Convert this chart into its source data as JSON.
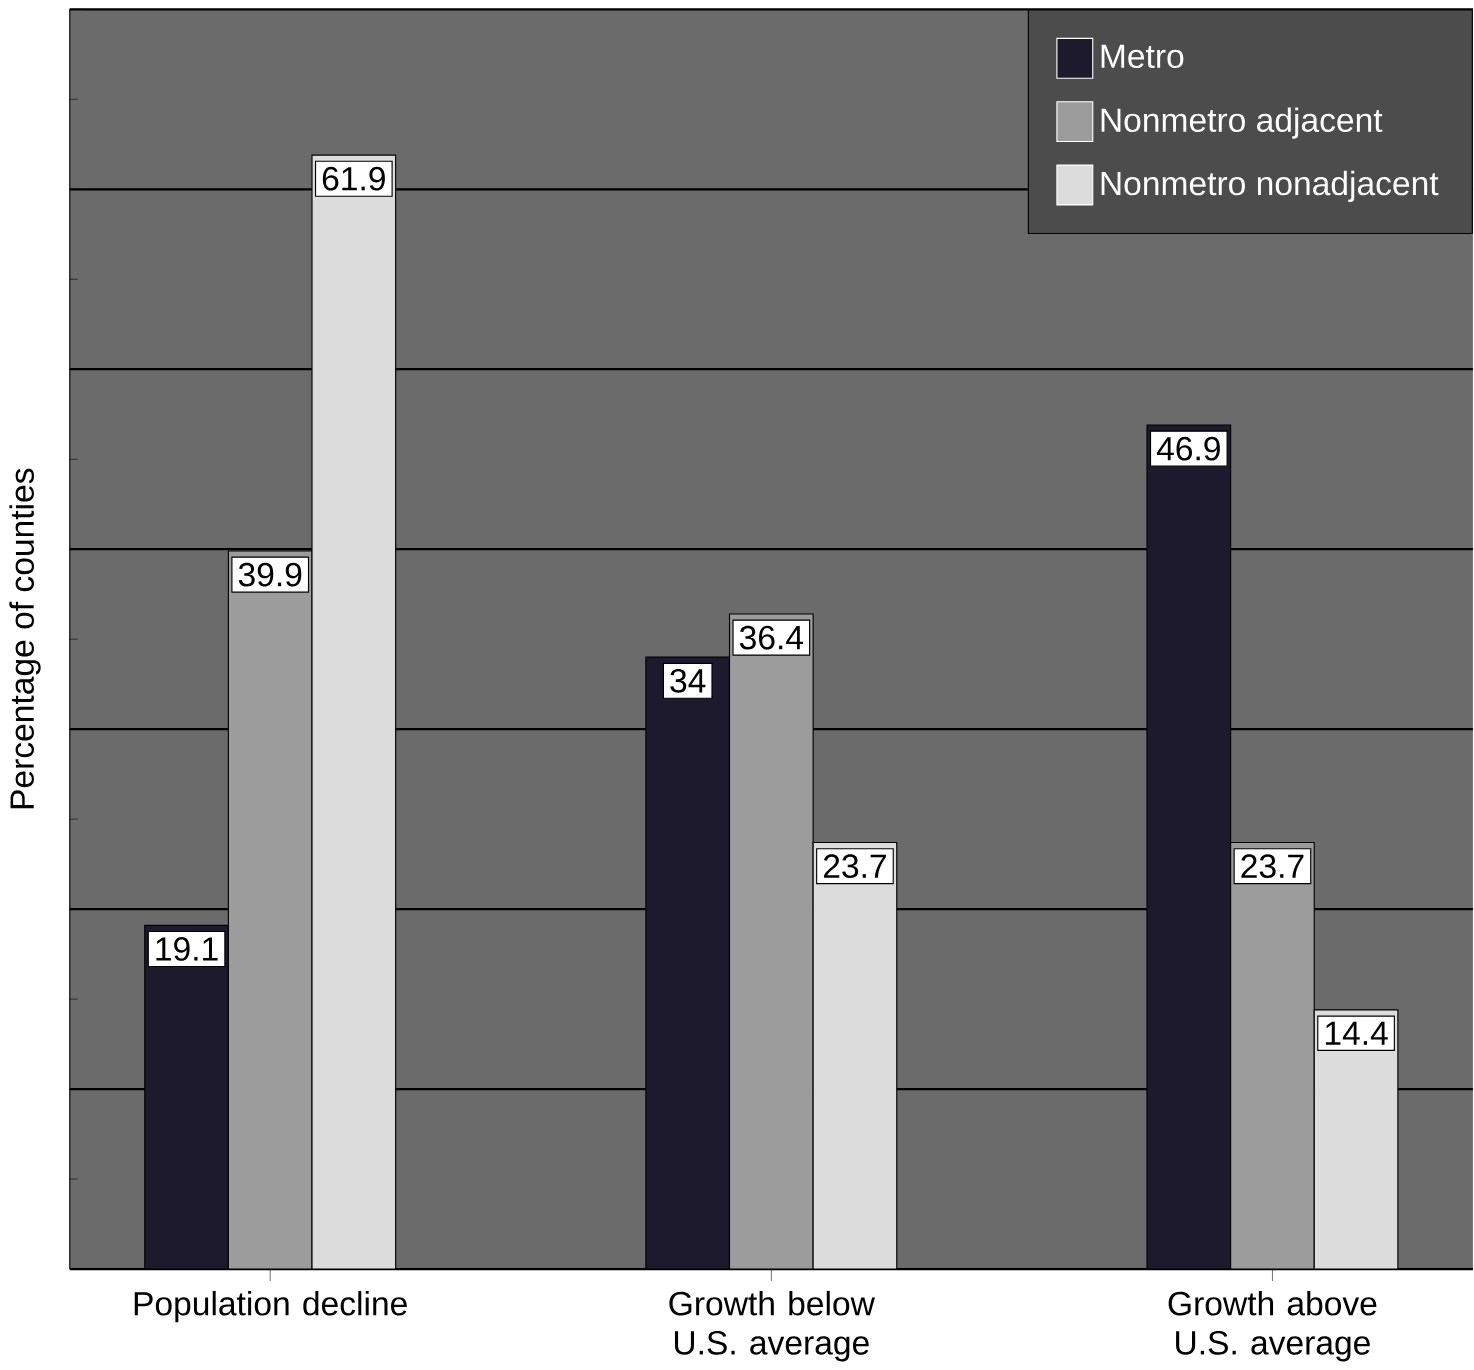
{
  "chart_data": {
    "type": "bar",
    "ylabel": "Percentage of counties",
    "categories": [
      "Population decline",
      "Growth below U.S. average",
      "Growth above U.S. average"
    ],
    "series": [
      {
        "name": "Metro",
        "color": "#1c1a2c",
        "values": [
          19.1,
          34,
          46.9
        ]
      },
      {
        "name": "Nonmetro adjacent",
        "color": "#9c9c9c",
        "values": [
          39.9,
          36.4,
          23.7
        ]
      },
      {
        "name": "Nonmetro nonadjacent",
        "color": "#dcdcdc",
        "values": [
          61.9,
          23.7,
          14.4
        ]
      }
    ],
    "ylim": [
      0,
      70
    ],
    "yticks": [
      {
        "value": 0,
        "label": null
      },
      {
        "value": 10,
        "label": null
      },
      {
        "value": 20,
        "label": null
      },
      {
        "value": 30,
        "label": null
      },
      {
        "value": 40,
        "label": null
      },
      {
        "value": 50,
        "label": null
      },
      {
        "value": 60,
        "label": null
      },
      {
        "value": 70,
        "label": null
      }
    ],
    "grid": "y",
    "legend": "top right",
    "data_labels": true
  }
}
